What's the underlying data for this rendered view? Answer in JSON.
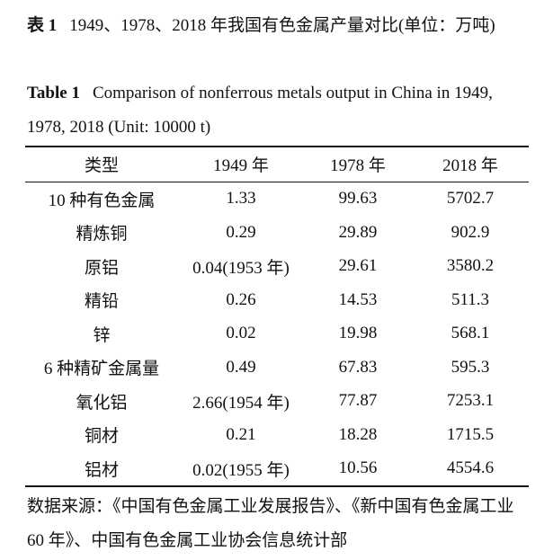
{
  "caption_cn": {
    "label": "表 1",
    "text": "1949、1978、2018 年我国有色金属产量对比(单位：万吨)"
  },
  "caption_en": {
    "label": "Table 1",
    "text": "Comparison of nonferrous metals output in China in 1949, 1978, 2018 (Unit: 10000 t)"
  },
  "table": {
    "header": [
      "类型",
      "1949 年",
      "1978 年",
      "2018 年"
    ],
    "rows": [
      [
        "10 种有色金属",
        "1.33",
        "99.63",
        "5702.7"
      ],
      [
        "精炼铜",
        "0.29",
        "29.89",
        "902.9"
      ],
      [
        "原铝",
        "0.04(1953 年)",
        "29.61",
        "3580.2"
      ],
      [
        "精铅",
        "0.26",
        "14.53",
        "511.3"
      ],
      [
        "锌",
        "0.02",
        "19.98",
        "568.1"
      ],
      [
        "6 种精矿金属量",
        "0.49",
        "67.83",
        "595.3"
      ],
      [
        "氧化铝",
        "2.66(1954 年)",
        "77.87",
        "7253.1"
      ],
      [
        "铜材",
        "0.21",
        "18.28",
        "1715.5"
      ],
      [
        "铝材",
        "0.02(1955 年)",
        "10.56",
        "4554.6"
      ]
    ]
  },
  "footnote": "数据来源：《中国有色金属工业发展报告》、《新中国有色金属工业 60 年》、中国有色金属工业协会信息统计部"
}
